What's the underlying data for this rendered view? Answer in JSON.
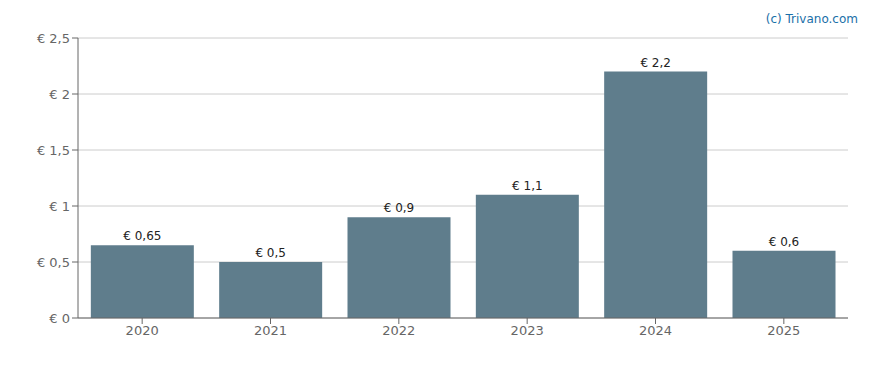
{
  "chart_data": {
    "type": "bar",
    "categories": [
      "2020",
      "2021",
      "2022",
      "2023",
      "2024",
      "2025"
    ],
    "values": [
      0.65,
      0.5,
      0.9,
      1.1,
      2.2,
      0.6
    ],
    "value_labels": [
      "€ 0,65",
      "€ 0,5",
      "€ 0,9",
      "€ 1,1",
      "€ 2,2",
      "€ 0,6"
    ],
    "data_labels": true,
    "color": "#5f7d8c",
    "ylim": [
      0,
      2.5
    ],
    "yticks": [
      {
        "value": 0,
        "label": "€ 0"
      },
      {
        "value": 0.5,
        "label": "€ 0,5"
      },
      {
        "value": 1.0,
        "label": "€ 1"
      },
      {
        "value": 1.5,
        "label": "€ 1,5"
      },
      {
        "value": 2.0,
        "label": "€ 2"
      },
      {
        "value": 2.5,
        "label": "€ 2,5"
      }
    ],
    "grid": true,
    "annotations": [
      {
        "text": "(c) Trivano.com",
        "color": "#1a6fa8"
      }
    ]
  }
}
